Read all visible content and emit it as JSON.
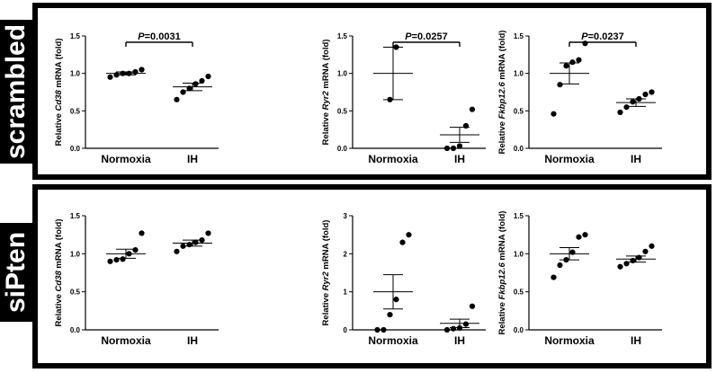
{
  "panels": [
    {
      "label": "scrambled"
    },
    {
      "label": "siPten"
    }
  ],
  "chart_data": [
    {
      "type": "scatter",
      "row": 0,
      "col": 0,
      "ylabel_parts": [
        {
          "t": "Relative ",
          "i": false
        },
        {
          "t": "Cd38",
          "i": true
        },
        {
          "t": " mRNA (fold)",
          "i": false
        }
      ],
      "categories": [
        "Normoxia",
        "IH"
      ],
      "ylim": [
        0,
        1.5
      ],
      "yticks": [
        "0.0",
        "0.5",
        "1.0",
        "1.5"
      ],
      "groups": [
        {
          "points": [
            0.95,
            0.98,
            1.0,
            1.0,
            1.02,
            1.05
          ],
          "mean": 1.0,
          "sem": 0.02
        },
        {
          "points": [
            0.65,
            0.75,
            0.8,
            0.86,
            0.9,
            0.96
          ],
          "mean": 0.82,
          "sem": 0.05
        }
      ],
      "significance": {
        "prefix": "P",
        "value": "=0.0031"
      }
    },
    {
      "type": "scatter",
      "row": 0,
      "col": 1,
      "ylabel_parts": [
        {
          "t": "Relative ",
          "i": false
        },
        {
          "t": "Ryr2",
          "i": true
        },
        {
          "t": " mRNA (fold)",
          "i": false
        }
      ],
      "categories": [
        "Normoxia",
        "IH"
      ],
      "ylim": [
        0,
        1.5
      ],
      "yticks": [
        "0.0",
        "0.5",
        "1.0",
        "1.5"
      ],
      "groups": [
        {
          "points": [
            0.65,
            1.35
          ],
          "mean": 1.0,
          "sem": 0.35
        },
        {
          "points": [
            0.0,
            0.0,
            0.03,
            0.3,
            0.52
          ],
          "mean": 0.18,
          "sem": 0.1
        }
      ],
      "significance": {
        "prefix": "P",
        "value": "=0.0257"
      }
    },
    {
      "type": "scatter",
      "row": 0,
      "col": 2,
      "ylabel_parts": [
        {
          "t": "Relative ",
          "i": false
        },
        {
          "t": "Fkbp12.6",
          "i": true
        },
        {
          "t": " mRNA (fold)",
          "i": false
        }
      ],
      "categories": [
        "Normoxia",
        "IH"
      ],
      "ylim": [
        0,
        1.5
      ],
      "yticks": [
        "0.0",
        "0.5",
        "1.0",
        "1.5"
      ],
      "groups": [
        {
          "points": [
            0.46,
            0.85,
            1.1,
            1.15,
            1.18,
            1.4
          ],
          "mean": 1.0,
          "sem": 0.14
        },
        {
          "points": [
            0.48,
            0.55,
            0.62,
            0.66,
            0.72,
            0.75
          ],
          "mean": 0.61,
          "sem": 0.05
        }
      ],
      "significance": {
        "prefix": "P",
        "value": "=0.0237"
      }
    },
    {
      "type": "scatter",
      "row": 1,
      "col": 0,
      "ylabel_parts": [
        {
          "t": "Relative ",
          "i": false
        },
        {
          "t": "Cd38",
          "i": true
        },
        {
          "t": " mRNA (fold)",
          "i": false
        }
      ],
      "categories": [
        "Normoxia",
        "IH"
      ],
      "ylim": [
        0,
        1.5
      ],
      "yticks": [
        "0.0",
        "0.5",
        "1.0",
        "1.5"
      ],
      "groups": [
        {
          "points": [
            0.9,
            0.92,
            0.93,
            1.0,
            1.05,
            1.27
          ],
          "mean": 1.0,
          "sem": 0.06
        },
        {
          "points": [
            1.03,
            1.1,
            1.12,
            1.15,
            1.18,
            1.27
          ],
          "mean": 1.14,
          "sem": 0.04
        }
      ],
      "significance": null
    },
    {
      "type": "scatter",
      "row": 1,
      "col": 1,
      "ylabel_parts": [
        {
          "t": "Relative ",
          "i": false
        },
        {
          "t": "Ryr2",
          "i": true
        },
        {
          "t": " mRNA (fold)",
          "i": false
        }
      ],
      "categories": [
        "Normoxia",
        "IH"
      ],
      "ylim": [
        0,
        3
      ],
      "yticks": [
        "0",
        "1",
        "2",
        "3"
      ],
      "groups": [
        {
          "points": [
            0.0,
            0.0,
            0.4,
            0.8,
            2.3,
            2.5
          ],
          "mean": 1.0,
          "sem": 0.45
        },
        {
          "points": [
            0.0,
            0.03,
            0.05,
            0.15,
            0.62
          ],
          "mean": 0.17,
          "sem": 0.11
        }
      ],
      "significance": null
    },
    {
      "type": "scatter",
      "row": 1,
      "col": 2,
      "ylabel_parts": [
        {
          "t": "Relative ",
          "i": false
        },
        {
          "t": "Fkbp12.6",
          "i": true
        },
        {
          "t": " mRNA (fold)",
          "i": false
        }
      ],
      "categories": [
        "Normoxia",
        "IH"
      ],
      "ylim": [
        0,
        1.5
      ],
      "yticks": [
        "0.0",
        "0.5",
        "1.0",
        "1.5"
      ],
      "groups": [
        {
          "points": [
            0.69,
            0.85,
            0.92,
            1.02,
            1.22,
            1.25
          ],
          "mean": 1.0,
          "sem": 0.08
        },
        {
          "points": [
            0.83,
            0.87,
            0.91,
            0.95,
            1.03,
            1.1
          ],
          "mean": 0.93,
          "sem": 0.04
        }
      ],
      "significance": null
    }
  ]
}
